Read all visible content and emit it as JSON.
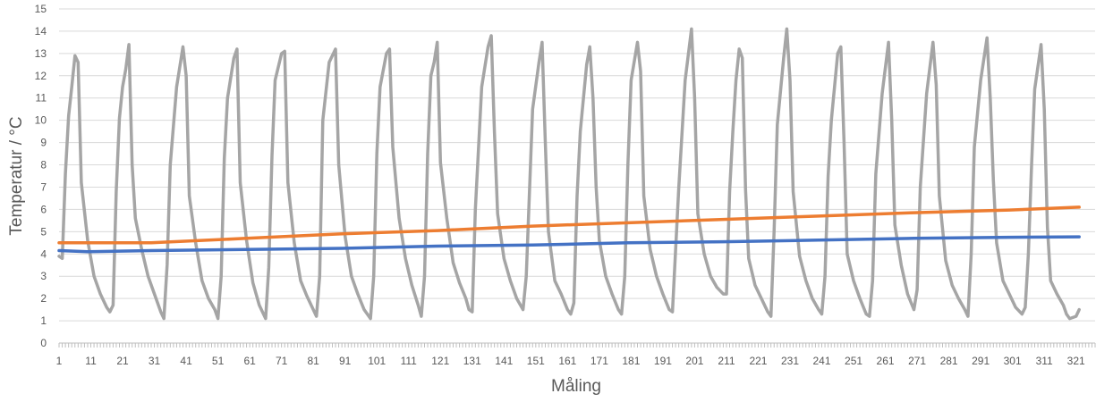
{
  "chart_data": {
    "type": "line",
    "title": "",
    "xlabel": "Måling",
    "ylabel": "Temperatur / °C",
    "xlim": [
      1,
      327
    ],
    "ylim": [
      0,
      15
    ],
    "y_ticks": [
      0,
      1,
      2,
      3,
      4,
      5,
      6,
      7,
      8,
      9,
      10,
      11,
      12,
      13,
      14,
      15
    ],
    "x_ticks": [
      1,
      11,
      21,
      31,
      41,
      51,
      61,
      71,
      81,
      91,
      101,
      111,
      121,
      131,
      141,
      151,
      161,
      171,
      181,
      191,
      201,
      211,
      221,
      231,
      241,
      251,
      261,
      271,
      281,
      291,
      301,
      311,
      321
    ],
    "grid": "horizontal",
    "legend": "none",
    "series": [
      {
        "color": "#A5A5A5",
        "points": [
          [
            1,
            3.9
          ],
          [
            2,
            3.8
          ],
          [
            3,
            7.6
          ],
          [
            4,
            10.2
          ],
          [
            5,
            11.5
          ],
          [
            6,
            12.9
          ],
          [
            7,
            12.6
          ],
          [
            8,
            7.2
          ],
          [
            10,
            4.6
          ],
          [
            12,
            3.0
          ],
          [
            14,
            2.2
          ],
          [
            16,
            1.6
          ],
          [
            17,
            1.4
          ],
          [
            18,
            1.7
          ],
          [
            19,
            6.8
          ],
          [
            20,
            10.1
          ],
          [
            21,
            11.5
          ],
          [
            22,
            12.3
          ],
          [
            23,
            13.4
          ],
          [
            24,
            8.0
          ],
          [
            25,
            5.6
          ],
          [
            27,
            4.2
          ],
          [
            29,
            3.0
          ],
          [
            31,
            2.2
          ],
          [
            33,
            1.4
          ],
          [
            34,
            1.1
          ],
          [
            35,
            3.5
          ],
          [
            36,
            8.0
          ],
          [
            38,
            11.5
          ],
          [
            40,
            13.3
          ],
          [
            41,
            12.0
          ],
          [
            42,
            6.6
          ],
          [
            44,
            4.5
          ],
          [
            46,
            2.8
          ],
          [
            48,
            2.0
          ],
          [
            50,
            1.5
          ],
          [
            51,
            1.1
          ],
          [
            52,
            3.0
          ],
          [
            53,
            8.3
          ],
          [
            54,
            11.0
          ],
          [
            56,
            12.8
          ],
          [
            57,
            13.2
          ],
          [
            58,
            7.2
          ],
          [
            60,
            4.6
          ],
          [
            62,
            2.7
          ],
          [
            64,
            1.7
          ],
          [
            66,
            1.1
          ],
          [
            67,
            3.4
          ],
          [
            68,
            8.4
          ],
          [
            69,
            11.8
          ],
          [
            71,
            13.0
          ],
          [
            72,
            13.1
          ],
          [
            73,
            7.2
          ],
          [
            75,
            4.5
          ],
          [
            77,
            2.8
          ],
          [
            79,
            2.1
          ],
          [
            81,
            1.5
          ],
          [
            82,
            1.2
          ],
          [
            83,
            3.0
          ],
          [
            84,
            10.0
          ],
          [
            86,
            12.6
          ],
          [
            88,
            13.2
          ],
          [
            89,
            8.0
          ],
          [
            91,
            4.8
          ],
          [
            93,
            3.0
          ],
          [
            95,
            2.2
          ],
          [
            97,
            1.5
          ],
          [
            99,
            1.1
          ],
          [
            100,
            3.0
          ],
          [
            101,
            8.5
          ],
          [
            102,
            11.5
          ],
          [
            104,
            13.0
          ],
          [
            105,
            13.2
          ],
          [
            106,
            8.8
          ],
          [
            108,
            5.6
          ],
          [
            110,
            3.8
          ],
          [
            112,
            2.6
          ],
          [
            114,
            1.7
          ],
          [
            115,
            1.2
          ],
          [
            116,
            3.0
          ],
          [
            117,
            8.5
          ],
          [
            118,
            12.0
          ],
          [
            119,
            12.6
          ],
          [
            120,
            13.5
          ],
          [
            121,
            8.1
          ],
          [
            123,
            5.6
          ],
          [
            125,
            3.6
          ],
          [
            127,
            2.7
          ],
          [
            129,
            2.0
          ],
          [
            130,
            1.5
          ],
          [
            131,
            1.4
          ],
          [
            132,
            6.0
          ],
          [
            134,
            11.5
          ],
          [
            136,
            13.3
          ],
          [
            137,
            13.8
          ],
          [
            138,
            9.5
          ],
          [
            139,
            5.8
          ],
          [
            141,
            3.8
          ],
          [
            143,
            2.8
          ],
          [
            145,
            2.0
          ],
          [
            147,
            1.5
          ],
          [
            148,
            3.0
          ],
          [
            150,
            10.5
          ],
          [
            152,
            12.6
          ],
          [
            153,
            13.5
          ],
          [
            154,
            9.0
          ],
          [
            155,
            5.0
          ],
          [
            157,
            2.8
          ],
          [
            159,
            2.2
          ],
          [
            161,
            1.5
          ],
          [
            162,
            1.3
          ],
          [
            163,
            1.8
          ],
          [
            164,
            6.6
          ],
          [
            165,
            9.5
          ],
          [
            167,
            12.5
          ],
          [
            168,
            13.3
          ],
          [
            169,
            11.0
          ],
          [
            170,
            7.0
          ],
          [
            171,
            4.6
          ],
          [
            173,
            3.0
          ],
          [
            175,
            2.2
          ],
          [
            177,
            1.5
          ],
          [
            178,
            1.3
          ],
          [
            179,
            3.0
          ],
          [
            180,
            8.0
          ],
          [
            181,
            11.8
          ],
          [
            183,
            13.5
          ],
          [
            184,
            12.2
          ],
          [
            185,
            6.6
          ],
          [
            187,
            4.2
          ],
          [
            189,
            3.0
          ],
          [
            191,
            2.2
          ],
          [
            193,
            1.5
          ],
          [
            194,
            1.4
          ],
          [
            196,
            7.0
          ],
          [
            198,
            11.8
          ],
          [
            200,
            14.1
          ],
          [
            201,
            11.0
          ],
          [
            202,
            5.8
          ],
          [
            204,
            4.0
          ],
          [
            206,
            3.0
          ],
          [
            208,
            2.5
          ],
          [
            210,
            2.2
          ],
          [
            211,
            2.2
          ],
          [
            212,
            6.8
          ],
          [
            213,
            9.5
          ],
          [
            214,
            11.8
          ],
          [
            215,
            13.2
          ],
          [
            216,
            12.8
          ],
          [
            217,
            6.9
          ],
          [
            218,
            3.8
          ],
          [
            220,
            2.6
          ],
          [
            222,
            2.0
          ],
          [
            224,
            1.4
          ],
          [
            225,
            1.2
          ],
          [
            226,
            5.0
          ],
          [
            227,
            9.8
          ],
          [
            229,
            12.8
          ],
          [
            230,
            14.1
          ],
          [
            231,
            11.8
          ],
          [
            232,
            6.8
          ],
          [
            234,
            3.9
          ],
          [
            236,
            2.8
          ],
          [
            238,
            2.0
          ],
          [
            240,
            1.5
          ],
          [
            241,
            1.3
          ],
          [
            242,
            3.0
          ],
          [
            243,
            7.5
          ],
          [
            244,
            10.0
          ],
          [
            246,
            13.0
          ],
          [
            247,
            13.3
          ],
          [
            248,
            9.0
          ],
          [
            249,
            4.0
          ],
          [
            251,
            2.8
          ],
          [
            253,
            2.0
          ],
          [
            255,
            1.3
          ],
          [
            256,
            1.2
          ],
          [
            257,
            2.8
          ],
          [
            258,
            7.6
          ],
          [
            260,
            11.2
          ],
          [
            262,
            13.5
          ],
          [
            263,
            10.0
          ],
          [
            264,
            5.3
          ],
          [
            266,
            3.5
          ],
          [
            268,
            2.2
          ],
          [
            270,
            1.5
          ],
          [
            271,
            2.4
          ],
          [
            272,
            7.0
          ],
          [
            274,
            11.2
          ],
          [
            276,
            13.5
          ],
          [
            277,
            11.6
          ],
          [
            278,
            6.6
          ],
          [
            280,
            3.7
          ],
          [
            282,
            2.6
          ],
          [
            284,
            2.0
          ],
          [
            286,
            1.5
          ],
          [
            287,
            1.2
          ],
          [
            288,
            4.0
          ],
          [
            289,
            8.8
          ],
          [
            291,
            11.8
          ],
          [
            293,
            13.7
          ],
          [
            294,
            11.0
          ],
          [
            295,
            7.3
          ],
          [
            296,
            4.5
          ],
          [
            298,
            2.8
          ],
          [
            300,
            2.2
          ],
          [
            302,
            1.6
          ],
          [
            304,
            1.3
          ],
          [
            305,
            1.6
          ],
          [
            306,
            4.0
          ],
          [
            307,
            8.0
          ],
          [
            308,
            11.4
          ],
          [
            310,
            13.4
          ],
          [
            311,
            10.5
          ],
          [
            312,
            5.2
          ],
          [
            313,
            2.8
          ],
          [
            315,
            2.2
          ],
          [
            317,
            1.7
          ],
          [
            318,
            1.3
          ],
          [
            319,
            1.1
          ],
          [
            321,
            1.2
          ],
          [
            322,
            1.5
          ]
        ]
      },
      {
        "color": "#ED7D31",
        "points": [
          [
            1,
            4.5
          ],
          [
            30,
            4.5
          ],
          [
            60,
            4.7
          ],
          [
            90,
            4.9
          ],
          [
            120,
            5.05
          ],
          [
            150,
            5.25
          ],
          [
            180,
            5.4
          ],
          [
            210,
            5.55
          ],
          [
            240,
            5.7
          ],
          [
            270,
            5.85
          ],
          [
            300,
            5.97
          ],
          [
            322,
            6.1
          ]
        ]
      },
      {
        "color": "#4472C4",
        "points": [
          [
            1,
            4.15
          ],
          [
            10,
            4.1
          ],
          [
            30,
            4.15
          ],
          [
            60,
            4.2
          ],
          [
            90,
            4.25
          ],
          [
            120,
            4.35
          ],
          [
            150,
            4.4
          ],
          [
            180,
            4.5
          ],
          [
            210,
            4.55
          ],
          [
            240,
            4.62
          ],
          [
            270,
            4.7
          ],
          [
            300,
            4.75
          ],
          [
            322,
            4.77
          ]
        ]
      }
    ]
  }
}
